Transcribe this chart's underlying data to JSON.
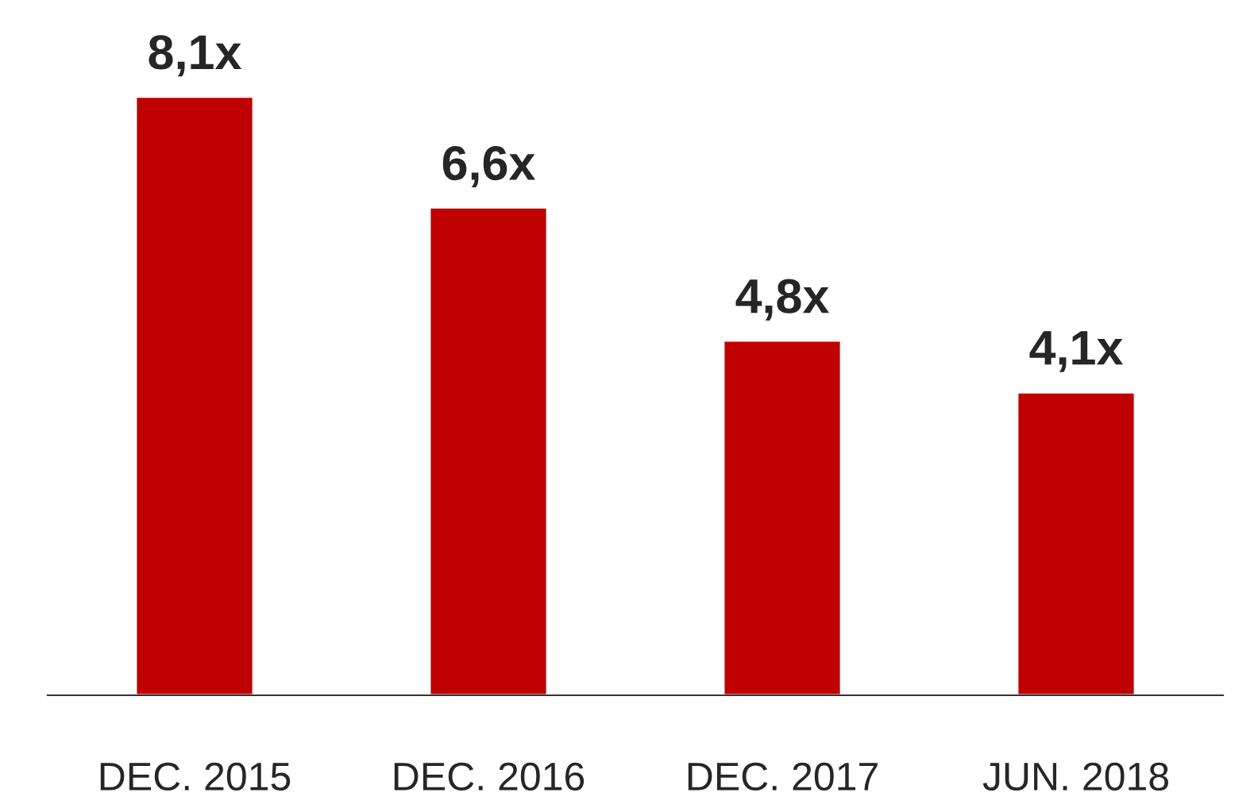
{
  "chart_data": {
    "type": "bar",
    "categories": [
      "DEC. 2015",
      "DEC. 2016",
      "DEC. 2017",
      "JUN. 2018"
    ],
    "values": [
      8.1,
      6.6,
      4.8,
      4.1
    ],
    "value_labels": [
      "8,1x",
      "6,6x",
      "4,8x",
      "4,1x"
    ],
    "color": "#c00000",
    "grid": false,
    "legend": false
  }
}
